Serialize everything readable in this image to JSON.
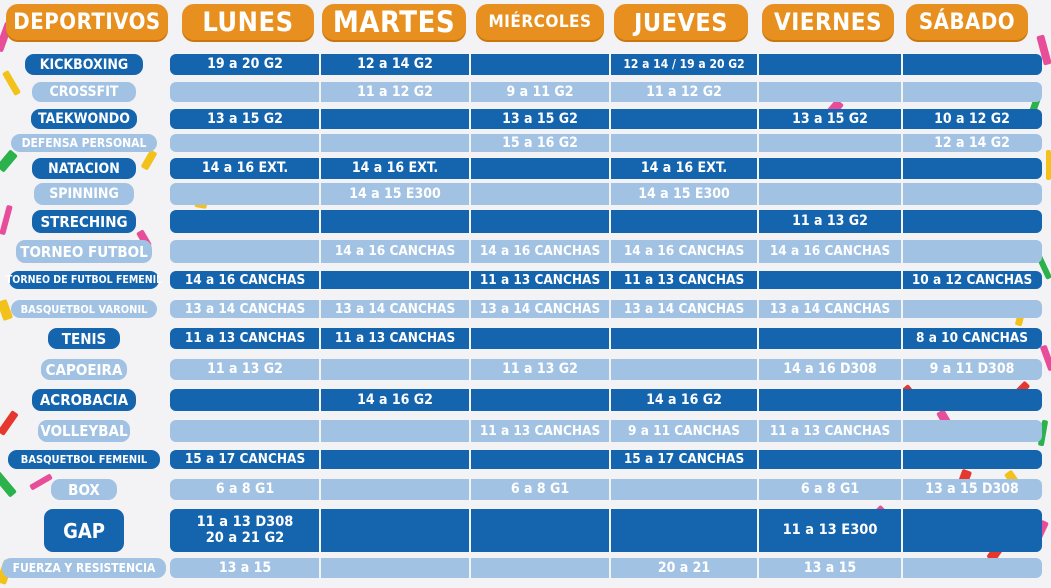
{
  "headers": {
    "deportivos": "DEPORTIVOS",
    "lunes": "LUNES",
    "martes": "MARTES",
    "miercoles": "MIÉRCOLES",
    "jueves": "JUEVES",
    "viernes": "VIERNES",
    "sabado": "SÁBADO"
  },
  "colors": {
    "header_orange": "#e8901f",
    "row_dark": "#1464ae",
    "row_light": "#a2c2e4",
    "background": "#f3f3f5"
  },
  "rows": [
    {
      "sport": "KICKBOXING",
      "lunes": "19 a 20 G2",
      "martes": "12 a 14 G2",
      "miercoles": "",
      "jueves": "12 a 14 / 19 a 20 G2",
      "viernes": "",
      "sabado": ""
    },
    {
      "sport": "CROSSFIT",
      "lunes": "",
      "martes": "11 a 12 G2",
      "miercoles": "9 a 11 G2",
      "jueves": "11 a 12 G2",
      "viernes": "",
      "sabado": ""
    },
    {
      "sport": "TAEKWONDO",
      "lunes": "13 a 15 G2",
      "martes": "",
      "miercoles": "13 a 15 G2",
      "jueves": "",
      "viernes": "13 a 15 G2",
      "sabado": "10 a 12 G2"
    },
    {
      "sport": "DEFENSA PERSONAL",
      "lunes": "",
      "martes": "",
      "miercoles": "15 a 16 G2",
      "jueves": "",
      "viernes": "",
      "sabado": "12 a 14 G2"
    },
    {
      "sport": "NATACION",
      "lunes": "14 a 16 EXT.",
      "martes": "14 a 16 EXT.",
      "miercoles": "",
      "jueves": "14 a 16 EXT.",
      "viernes": "",
      "sabado": ""
    },
    {
      "sport": "SPINNING",
      "lunes": "",
      "martes": "14 a 15 E300",
      "miercoles": "",
      "jueves": "14 a 15 E300",
      "viernes": "",
      "sabado": ""
    },
    {
      "sport": "STRECHING",
      "lunes": "",
      "martes": "",
      "miercoles": "",
      "jueves": "",
      "viernes": "11 a 13 G2",
      "sabado": ""
    },
    {
      "sport": "TORNEO FUTBOL",
      "lunes": "",
      "martes": "14 a 16 CANCHAS",
      "miercoles": "14 a 16 CANCHAS",
      "jueves": "14 a 16 CANCHAS",
      "viernes": "14 a 16 CANCHAS",
      "sabado": ""
    },
    {
      "sport": "TORNEO DE FUTBOL FEMENIL",
      "lunes": "14 a 16 CANCHAS",
      "martes": "",
      "miercoles": "11 a 13 CANCHAS",
      "jueves": "11 a 13 CANCHAS",
      "viernes": "",
      "sabado": "10 a 12 CANCHAS"
    },
    {
      "sport": "BASQUETBOL VARONIL",
      "lunes": "13 a 14 CANCHAS",
      "martes": "13 a 14 CANCHAS",
      "miercoles": "13 a 14 CANCHAS",
      "jueves": "13 a 14 CANCHAS",
      "viernes": "13 a 14 CANCHAS",
      "sabado": ""
    },
    {
      "sport": "TENIS",
      "lunes": "11 a 13 CANCHAS",
      "martes": "11 a 13 CANCHAS",
      "miercoles": "",
      "jueves": "",
      "viernes": "",
      "sabado": "8 a 10 CANCHAS"
    },
    {
      "sport": "CAPOEIRA",
      "lunes": "11 a 13 G2",
      "martes": "",
      "miercoles": "11 a 13 G2",
      "jueves": "",
      "viernes": "14 a 16 D308",
      "sabado": "9 a 11 D308"
    },
    {
      "sport": "ACROBACIA",
      "lunes": "",
      "martes": "14 a 16 G2",
      "miercoles": "",
      "jueves": "14 a 16 G2",
      "viernes": "",
      "sabado": ""
    },
    {
      "sport": "VOLLEYBAL",
      "lunes": "",
      "martes": "",
      "miercoles": "11 a 13 CANCHAS",
      "jueves": "9 a 11 CANCHAS",
      "viernes": "11 a 13 CANCHAS",
      "sabado": ""
    },
    {
      "sport": "BASQUETBOL FEMENIL",
      "lunes": "15 a 17 CANCHAS",
      "martes": "",
      "miercoles": "",
      "jueves": "15 a 17 CANCHAS",
      "viernes": "",
      "sabado": ""
    },
    {
      "sport": "BOX",
      "lunes": "6 a 8 G1",
      "martes": "",
      "miercoles": "6 a 8 G1",
      "jueves": "",
      "viernes": "6 a 8 G1",
      "sabado": "13 a 15 D308"
    },
    {
      "sport": "GAP",
      "lunes": "11 a 13 D308\n20 a 21 G2",
      "martes": "",
      "miercoles": "",
      "jueves": "",
      "viernes": "11 a 13 E300",
      "sabado": ""
    },
    {
      "sport": "FUERZA Y RESISTENCIA",
      "lunes": "13 a 15",
      "martes": "",
      "miercoles": "",
      "jueves": "20 a 21",
      "viernes": "13 a 15",
      "sabado": ""
    }
  ]
}
